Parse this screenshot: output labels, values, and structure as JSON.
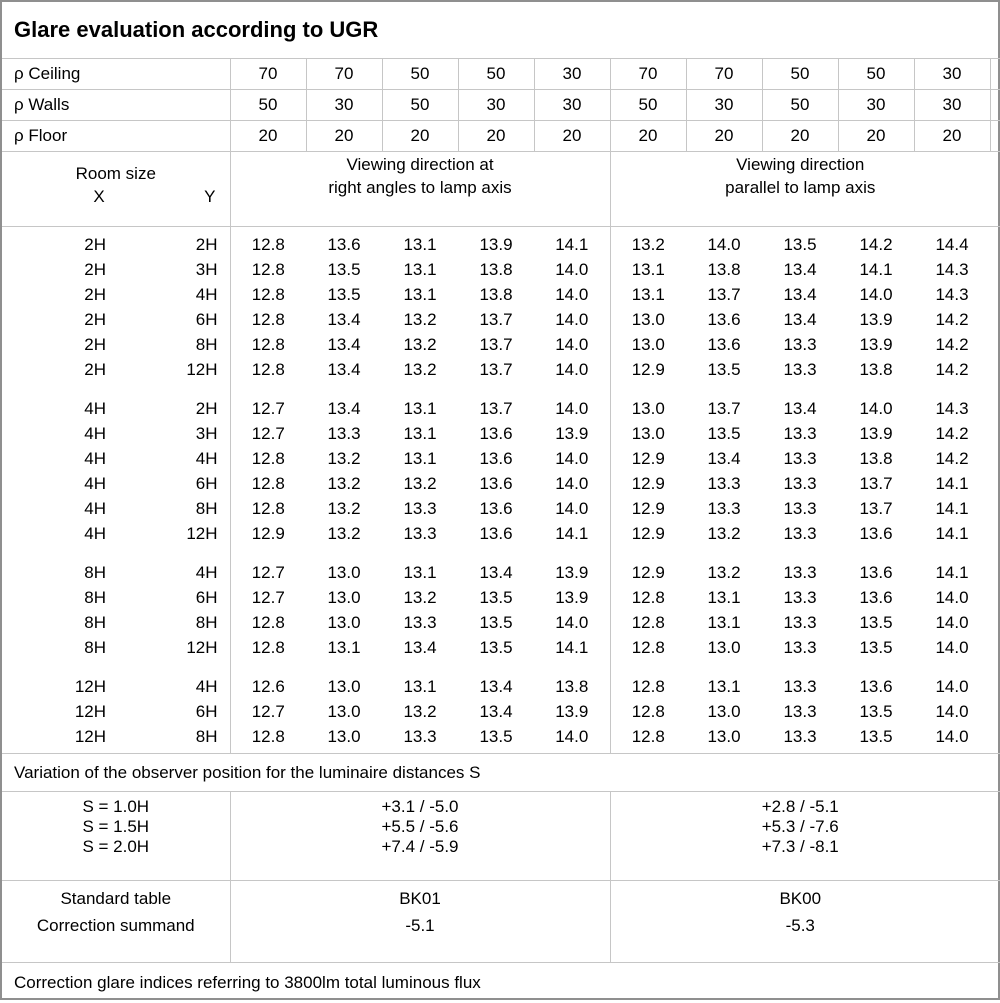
{
  "title": "Glare evaluation according to UGR",
  "reflectance": {
    "rows": [
      {
        "label": "ρ Ceiling",
        "values": [
          "70",
          "70",
          "50",
          "50",
          "30",
          "70",
          "70",
          "50",
          "50",
          "30"
        ]
      },
      {
        "label": "ρ Walls",
        "values": [
          "50",
          "30",
          "50",
          "30",
          "30",
          "50",
          "30",
          "50",
          "30",
          "30"
        ]
      },
      {
        "label": "ρ Floor",
        "values": [
          "20",
          "20",
          "20",
          "20",
          "20",
          "20",
          "20",
          "20",
          "20",
          "20"
        ]
      }
    ]
  },
  "header": {
    "room_size": "Room size",
    "x": "X",
    "y": "Y",
    "right_angles_line1": "Viewing direction at",
    "right_angles_line2": "right angles to lamp axis",
    "parallel_line1": "Viewing direction",
    "parallel_line2": "parallel to lamp axis"
  },
  "ugr": {
    "blocks": [
      {
        "rows": [
          {
            "x": "2H",
            "y": "2H",
            "right_angles": [
              "12.8",
              "13.6",
              "13.1",
              "13.9",
              "14.1"
            ],
            "parallel": [
              "13.2",
              "14.0",
              "13.5",
              "14.2",
              "14.4"
            ]
          },
          {
            "x": "2H",
            "y": "3H",
            "right_angles": [
              "12.8",
              "13.5",
              "13.1",
              "13.8",
              "14.0"
            ],
            "parallel": [
              "13.1",
              "13.8",
              "13.4",
              "14.1",
              "14.3"
            ]
          },
          {
            "x": "2H",
            "y": "4H",
            "right_angles": [
              "12.8",
              "13.5",
              "13.1",
              "13.8",
              "14.0"
            ],
            "parallel": [
              "13.1",
              "13.7",
              "13.4",
              "14.0",
              "14.3"
            ]
          },
          {
            "x": "2H",
            "y": "6H",
            "right_angles": [
              "12.8",
              "13.4",
              "13.2",
              "13.7",
              "14.0"
            ],
            "parallel": [
              "13.0",
              "13.6",
              "13.4",
              "13.9",
              "14.2"
            ]
          },
          {
            "x": "2H",
            "y": "8H",
            "right_angles": [
              "12.8",
              "13.4",
              "13.2",
              "13.7",
              "14.0"
            ],
            "parallel": [
              "13.0",
              "13.6",
              "13.3",
              "13.9",
              "14.2"
            ]
          },
          {
            "x": "2H",
            "y": "12H",
            "right_angles": [
              "12.8",
              "13.4",
              "13.2",
              "13.7",
              "14.0"
            ],
            "parallel": [
              "12.9",
              "13.5",
              "13.3",
              "13.8",
              "14.2"
            ]
          }
        ]
      },
      {
        "rows": [
          {
            "x": "4H",
            "y": "2H",
            "right_angles": [
              "12.7",
              "13.4",
              "13.1",
              "13.7",
              "14.0"
            ],
            "parallel": [
              "13.0",
              "13.7",
              "13.4",
              "14.0",
              "14.3"
            ]
          },
          {
            "x": "4H",
            "y": "3H",
            "right_angles": [
              "12.7",
              "13.3",
              "13.1",
              "13.6",
              "13.9"
            ],
            "parallel": [
              "13.0",
              "13.5",
              "13.3",
              "13.9",
              "14.2"
            ]
          },
          {
            "x": "4H",
            "y": "4H",
            "right_angles": [
              "12.8",
              "13.2",
              "13.1",
              "13.6",
              "14.0"
            ],
            "parallel": [
              "12.9",
              "13.4",
              "13.3",
              "13.8",
              "14.2"
            ]
          },
          {
            "x": "4H",
            "y": "6H",
            "right_angles": [
              "12.8",
              "13.2",
              "13.2",
              "13.6",
              "14.0"
            ],
            "parallel": [
              "12.9",
              "13.3",
              "13.3",
              "13.7",
              "14.1"
            ]
          },
          {
            "x": "4H",
            "y": "8H",
            "right_angles": [
              "12.8",
              "13.2",
              "13.3",
              "13.6",
              "14.0"
            ],
            "parallel": [
              "12.9",
              "13.3",
              "13.3",
              "13.7",
              "14.1"
            ]
          },
          {
            "x": "4H",
            "y": "12H",
            "right_angles": [
              "12.9",
              "13.2",
              "13.3",
              "13.6",
              "14.1"
            ],
            "parallel": [
              "12.9",
              "13.2",
              "13.3",
              "13.6",
              "14.1"
            ]
          }
        ]
      },
      {
        "rows": [
          {
            "x": "8H",
            "y": "4H",
            "right_angles": [
              "12.7",
              "13.0",
              "13.1",
              "13.4",
              "13.9"
            ],
            "parallel": [
              "12.9",
              "13.2",
              "13.3",
              "13.6",
              "14.1"
            ]
          },
          {
            "x": "8H",
            "y": "6H",
            "right_angles": [
              "12.7",
              "13.0",
              "13.2",
              "13.5",
              "13.9"
            ],
            "parallel": [
              "12.8",
              "13.1",
              "13.3",
              "13.6",
              "14.0"
            ]
          },
          {
            "x": "8H",
            "y": "8H",
            "right_angles": [
              "12.8",
              "13.0",
              "13.3",
              "13.5",
              "14.0"
            ],
            "parallel": [
              "12.8",
              "13.1",
              "13.3",
              "13.5",
              "14.0"
            ]
          },
          {
            "x": "8H",
            "y": "12H",
            "right_angles": [
              "12.8",
              "13.1",
              "13.4",
              "13.5",
              "14.1"
            ],
            "parallel": [
              "12.8",
              "13.0",
              "13.3",
              "13.5",
              "14.0"
            ]
          }
        ]
      },
      {
        "rows": [
          {
            "x": "12H",
            "y": "4H",
            "right_angles": [
              "12.6",
              "13.0",
              "13.1",
              "13.4",
              "13.8"
            ],
            "parallel": [
              "12.8",
              "13.1",
              "13.3",
              "13.6",
              "14.0"
            ]
          },
          {
            "x": "12H",
            "y": "6H",
            "right_angles": [
              "12.7",
              "13.0",
              "13.2",
              "13.4",
              "13.9"
            ],
            "parallel": [
              "12.8",
              "13.0",
              "13.3",
              "13.5",
              "14.0"
            ]
          },
          {
            "x": "12H",
            "y": "8H",
            "right_angles": [
              "12.8",
              "13.0",
              "13.3",
              "13.5",
              "14.0"
            ],
            "parallel": [
              "12.8",
              "13.0",
              "13.3",
              "13.5",
              "14.0"
            ]
          }
        ]
      }
    ]
  },
  "observer_variation": {
    "caption": "Variation of the observer position for the luminaire distances S",
    "rows": [
      {
        "label": "S = 1.0H",
        "right_angles": "+3.1 / -5.0",
        "parallel": "+2.8 / -5.1"
      },
      {
        "label": "S = 1.5H",
        "right_angles": "+5.5 / -5.6",
        "parallel": "+5.3 / -7.6"
      },
      {
        "label": "S = 2.0H",
        "right_angles": "+7.4 / -5.9",
        "parallel": "+7.3 / -8.1"
      }
    ]
  },
  "standard_correction": {
    "row_labels": [
      "Standard table",
      "Correction summand"
    ],
    "right_angles": [
      "BK01",
      "-5.1"
    ],
    "parallel": [
      "BK00",
      "-5.3"
    ]
  },
  "footer": "Correction glare indices referring to 3800lm total luminous flux",
  "colors": {
    "outer_border": "#8f8f8f",
    "grid_line": "#c6c6c6",
    "text": "#000000",
    "background": "#ffffff"
  }
}
